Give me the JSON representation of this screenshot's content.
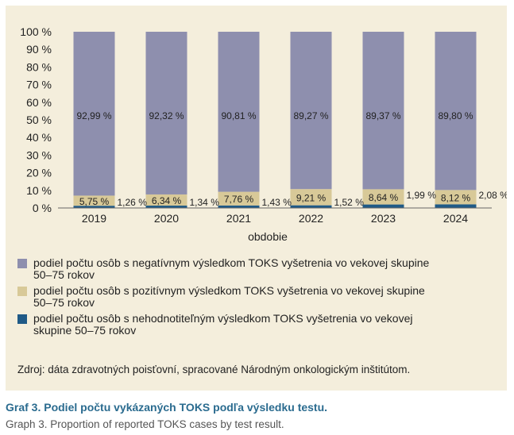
{
  "chart_data": {
    "type": "bar",
    "stacked": true,
    "percent": true,
    "categories": [
      "2019",
      "2020",
      "2021",
      "2022",
      "2023",
      "2024"
    ],
    "series": [
      {
        "name": "podiel počtu osôb s nehodnotiteľným výsledkom TOKS vyšetrenia vo vekovej skupine 50–75 rokov",
        "values": [
          1.26,
          1.34,
          1.43,
          1.52,
          1.99,
          2.08
        ],
        "labels": [
          "1,26 %",
          "1,34 %",
          "1,43 %",
          "1,52 %",
          "1,99 %",
          "2,08 %"
        ],
        "color": "#1f5a87"
      },
      {
        "name": "podiel počtu osôb s pozitívnym výsledkom TOKS vyšetrenia vo vekovej skupine 50–75 rokov",
        "values": [
          5.75,
          6.34,
          7.76,
          9.21,
          8.64,
          8.12
        ],
        "labels": [
          "5,75 %",
          "6,34 %",
          "7,76 %",
          "9,21 %",
          "8,64 %",
          "8,12 %"
        ],
        "color": "#d8c998"
      },
      {
        "name": "podiel počtu osôb s negatívnym výsledkom TOKS vyšetrenia vo vekovej skupine 50–75 rokov",
        "values": [
          92.99,
          92.32,
          90.81,
          89.27,
          89.37,
          89.8
        ],
        "labels": [
          "92,99 %",
          "92,32 %",
          "90,81 %",
          "89,27 %",
          "89,37 %",
          "89,80 %"
        ],
        "color": "#8e8fae"
      }
    ],
    "yticks": [
      "0 %",
      "10 %",
      "20 %",
      "30 %",
      "40 %",
      "50 %",
      "60 %",
      "70 %",
      "80 %",
      "90 %",
      "100 %"
    ],
    "ylim": [
      0,
      100
    ],
    "xlabel": "obdobie",
    "ylabel": "",
    "grid": false,
    "legend_position": "bottom"
  },
  "legend": [
    {
      "label": "podiel počtu osôb s negatívnym výsledkom TOKS vyšetrenia vo vekovej skupine 50–75 rokov",
      "color": "#8e8fae"
    },
    {
      "label": "podiel počtu osôb s pozitívnym výsledkom TOKS vyšetrenia vo vekovej skupine 50–75 rokov",
      "color": "#d8c998"
    },
    {
      "label": "podiel počtu osôb s nehodnotiteľným výsledkom TOKS vyšetrenia vo vekovej skupine 50–75 rokov",
      "color": "#1f5a87"
    }
  ],
  "source": "Zdroj: dáta zdravotných poisťovní, spracované Národným onkologickým inštitútom.",
  "caption": "Graf 3. Podiel počtu vykázaných TOKS podľa výsledku testu.",
  "caption_en": "Graph 3. Proportion of reported TOKS cases by test result."
}
